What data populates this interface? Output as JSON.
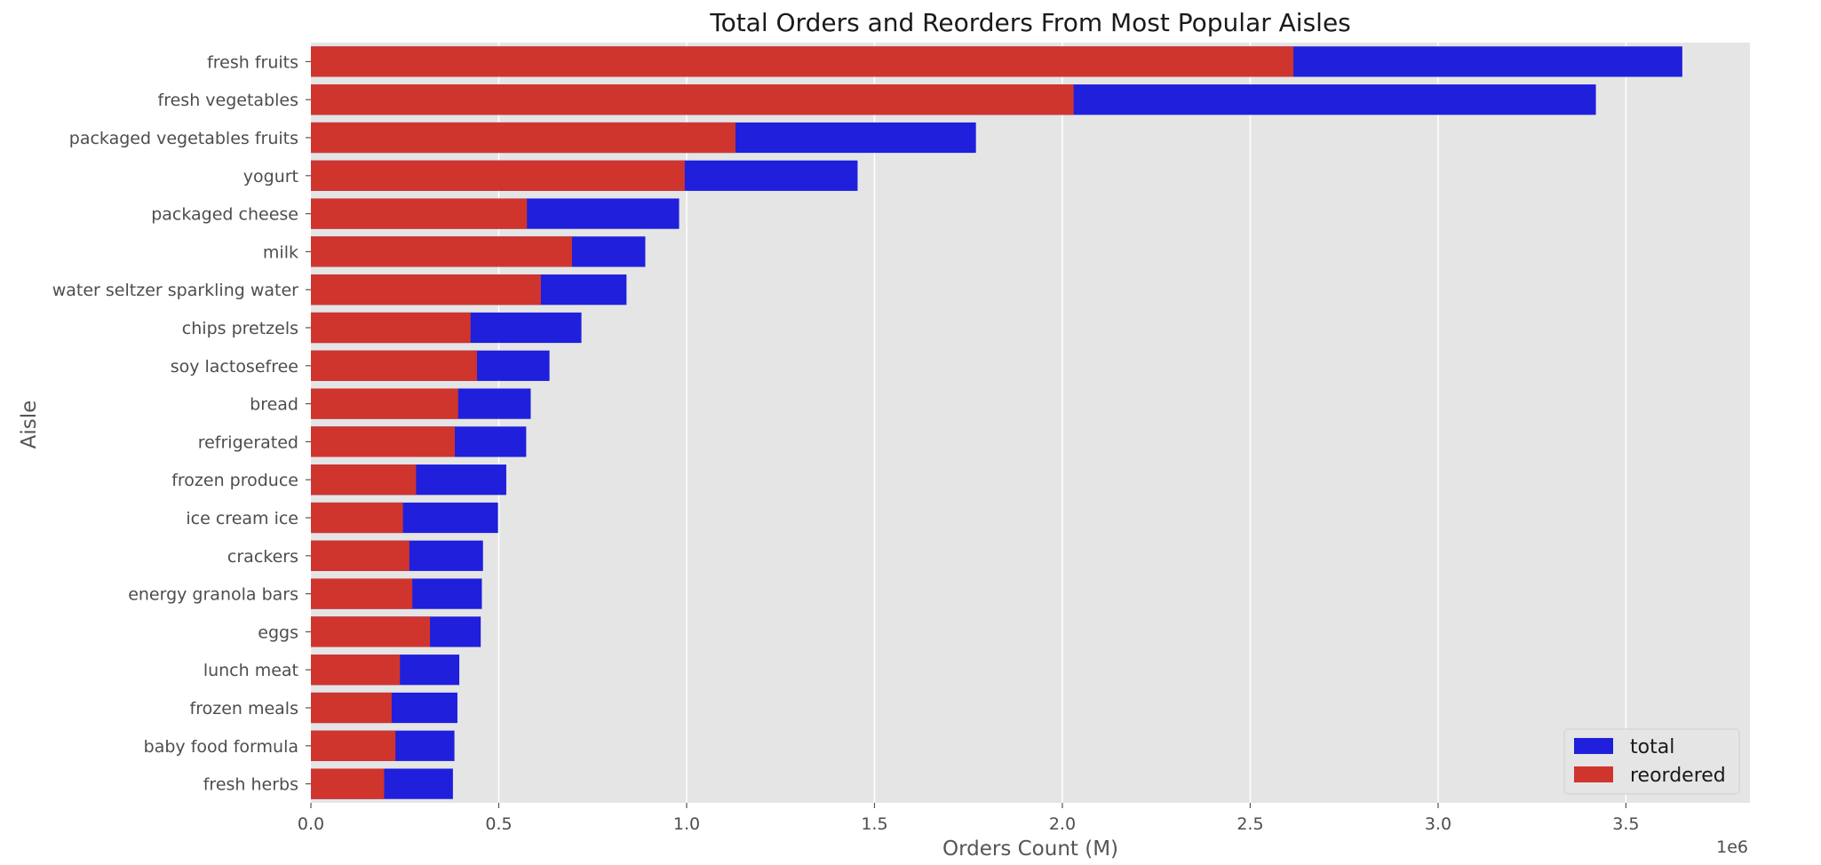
{
  "chart_data": {
    "type": "bar",
    "orientation": "horizontal",
    "stacking": "overlay",
    "title": "Total Orders and Reorders From Most Popular Aisles",
    "xlabel": "Orders Count (M)",
    "ylabel": "Aisle",
    "x_offset_label": "1e6",
    "xlim": [
      0,
      3830000
    ],
    "xticks": [
      0,
      500000,
      1000000,
      1500000,
      2000000,
      2500000,
      3000000,
      3500000
    ],
    "xtick_labels": [
      "0.0",
      "0.5",
      "1.0",
      "1.5",
      "2.0",
      "2.5",
      "3.0",
      "3.5"
    ],
    "grid": true,
    "legend_position": "bottom-right",
    "categories": [
      "fresh fruits",
      "fresh vegetables",
      "packaged vegetables fruits",
      "yogurt",
      "packaged cheese",
      "milk",
      "water seltzer sparkling water",
      "chips pretzels",
      "soy lactosefree",
      "bread",
      "refrigerated",
      "frozen produce",
      "ice cream ice",
      "crackers",
      "energy granola bars",
      "eggs",
      "lunch meat",
      "frozen meals",
      "baby food formula",
      "fresh herbs"
    ],
    "series": [
      {
        "name": "total",
        "color": "#1f1fdc",
        "values": [
          3650000,
          3420000,
          1770000,
          1455000,
          980000,
          890000,
          840000,
          720000,
          635000,
          585000,
          573000,
          520000,
          498000,
          458000,
          455000,
          452000,
          395000,
          390000,
          382000,
          378000
        ]
      },
      {
        "name": "reordered",
        "color": "#d0352d",
        "values": [
          2615000,
          2030000,
          1130000,
          995000,
          575000,
          695000,
          612000,
          425000,
          442000,
          392000,
          383000,
          280000,
          245000,
          262000,
          270000,
          317000,
          237000,
          215000,
          225000,
          195000
        ]
      }
    ]
  }
}
